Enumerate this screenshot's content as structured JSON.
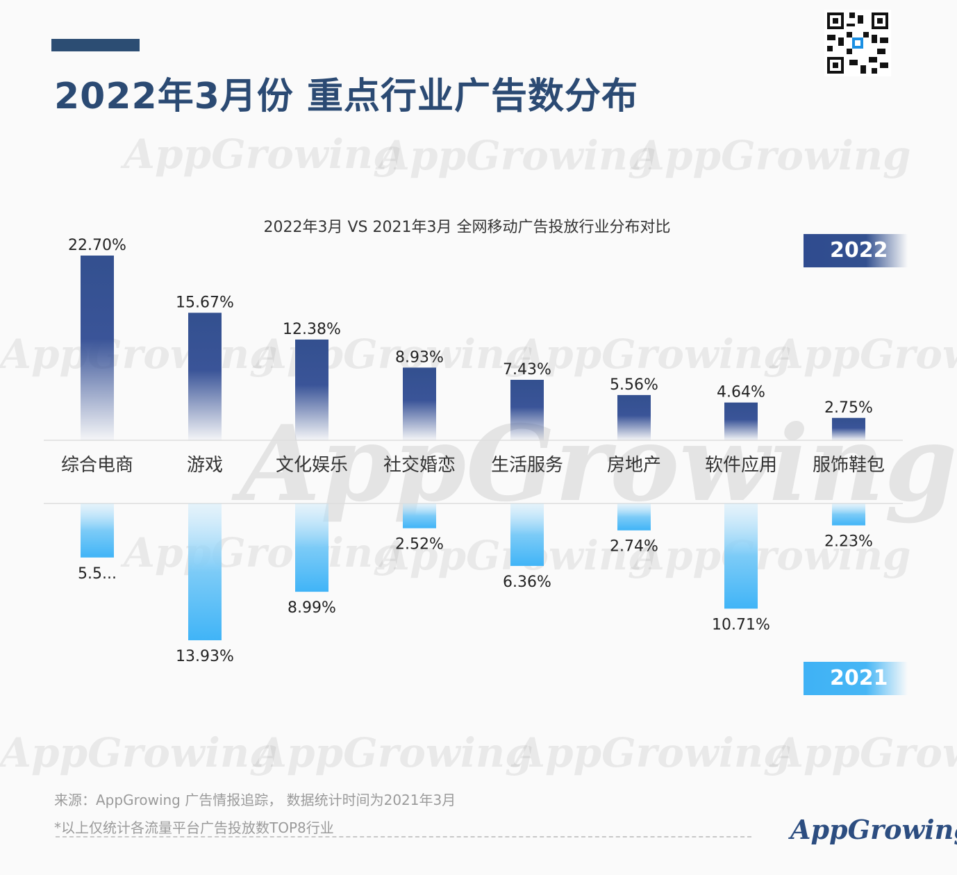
{
  "header": {
    "title": "2022年3月份 重点行业广告数分布"
  },
  "watermark_text": "AppGrowing",
  "legend": {
    "year_top": "2022",
    "year_bottom": "2021"
  },
  "footer": {
    "source": "来源：AppGrowing 广告情报追踪， 数据统计时间为2021年3月",
    "note": "*以上仅统计各流量平台广告投放数TOP8行业",
    "logo": "AppGrowing"
  },
  "colors": {
    "bar_2022": "#33508f",
    "bar_2021": "#40b4f7",
    "title": "#2b4a73"
  },
  "chart_data": {
    "type": "bar",
    "title": "2022年3月 VS 2021年3月 全网移动广告投放行业分布对比",
    "categories": [
      "综合电商",
      "游戏",
      "文化娱乐",
      "社交婚恋",
      "生活服务",
      "房地产",
      "软件应用",
      "服饰鞋包"
    ],
    "series": [
      {
        "name": "2022",
        "values": [
          22.7,
          15.67,
          12.38,
          8.93,
          7.43,
          5.56,
          4.64,
          2.75
        ],
        "labels": [
          "22.70%",
          "15.67%",
          "12.38%",
          "8.93%",
          "7.43%",
          "5.56%",
          "4.64%",
          "2.75%"
        ]
      },
      {
        "name": "2021",
        "values": [
          5.5,
          13.93,
          8.99,
          2.52,
          6.36,
          2.74,
          10.71,
          2.23
        ],
        "labels": [
          "5.5...",
          "13.93%",
          "8.99%",
          "2.52%",
          "6.36%",
          "2.74%",
          "10.71%",
          "2.23%"
        ]
      }
    ],
    "legend_position": "right",
    "grid": false
  }
}
